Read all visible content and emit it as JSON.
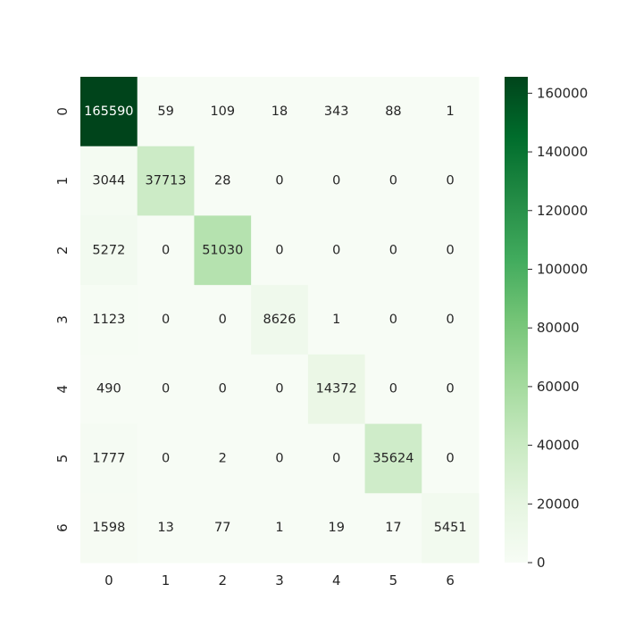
{
  "chart_data": {
    "type": "heatmap",
    "title": "",
    "xlabel": "",
    "ylabel": "",
    "x_categories": [
      "0",
      "1",
      "2",
      "3",
      "4",
      "5",
      "6"
    ],
    "y_categories": [
      "0",
      "1",
      "2",
      "3",
      "4",
      "5",
      "6"
    ],
    "values": [
      [
        165590,
        59,
        109,
        18,
        343,
        88,
        1
      ],
      [
        3044,
        37713,
        28,
        0,
        0,
        0,
        0
      ],
      [
        5272,
        0,
        51030,
        0,
        0,
        0,
        0
      ],
      [
        1123,
        0,
        0,
        8626,
        1,
        0,
        0
      ],
      [
        490,
        0,
        0,
        0,
        14372,
        0,
        0
      ],
      [
        1777,
        0,
        2,
        0,
        0,
        35624,
        0
      ],
      [
        1598,
        13,
        77,
        1,
        19,
        17,
        5451
      ]
    ],
    "colorbar": {
      "min": 0,
      "max": 165590,
      "ticks": [
        0,
        20000,
        40000,
        60000,
        80000,
        100000,
        120000,
        140000,
        160000
      ],
      "colormap": "Greens",
      "colors": [
        "#f7fcf5",
        "#e5f5e0",
        "#c7e9c0",
        "#a1d99b",
        "#74c476",
        "#41ab5d",
        "#238b45",
        "#006d2c",
        "#00441b"
      ]
    },
    "grid": false
  }
}
